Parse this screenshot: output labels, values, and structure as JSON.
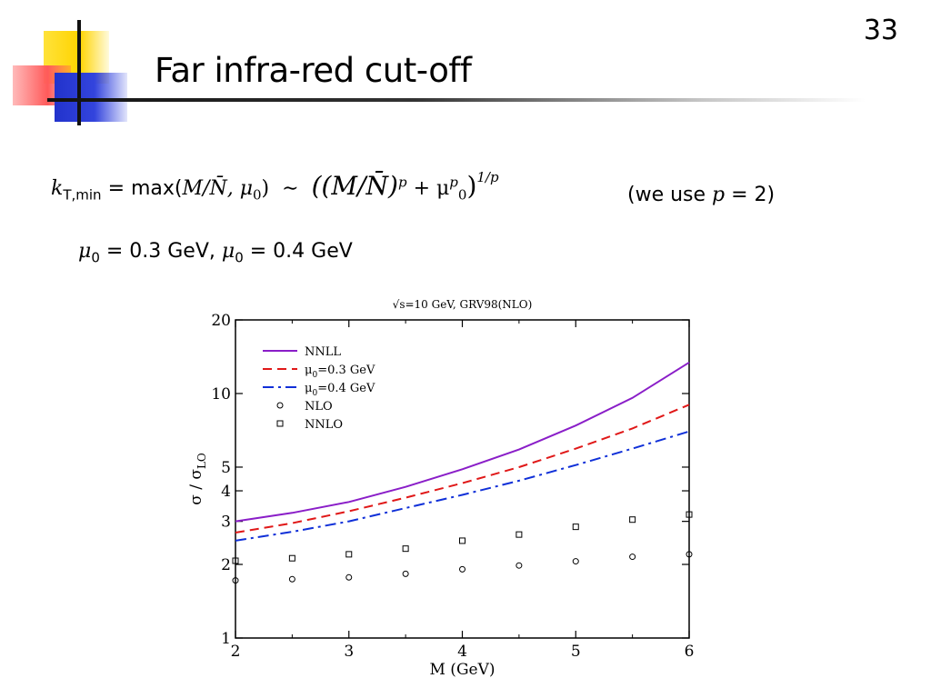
{
  "slide": {
    "title": "Far infra-red cut-off",
    "page_number": "33"
  },
  "formula1": {
    "k": "k",
    "k_sub": "T,min",
    "eq_max": "= max(",
    "args": "M/N̄, μ",
    "args_sub": "0",
    "close": ")",
    "sim": "∼",
    "rhs_open": "((M/N̄)",
    "p": "p",
    "plus": "+ μ",
    "mu_sup": "p",
    "mu_sub": "0",
    "rhs_close": ")",
    "exp": "1/p",
    "note_text": "(we use ",
    "note_var": "p",
    "note_val": " = 2)"
  },
  "formula2": {
    "mu_a": "μ",
    "mu_a_sub": "0",
    "val_a": " = 0.3 GeV, ",
    "mu_b": "μ",
    "mu_b_sub": "0",
    "val_b": " = 0.4 GeV"
  },
  "chart_data": {
    "type": "line",
    "title": "√s=10 GeV, GRV98(NLO)",
    "xlabel": "M (GeV)",
    "ylabel": "σ / σ_LO",
    "ylabel_main": "σ / σ",
    "ylabel_sub": "LO",
    "x_scale": "linear",
    "y_scale": "log",
    "xlim": [
      2,
      6
    ],
    "ylim": [
      1,
      20
    ],
    "x_ticks": [
      2,
      3,
      4,
      5,
      6
    ],
    "x_tick_labels": [
      "2",
      "3",
      "4",
      "5",
      "6"
    ],
    "y_ticks": [
      1,
      2,
      3,
      4,
      5,
      10,
      20
    ],
    "y_tick_labels": [
      "1",
      "2",
      "3",
      "4",
      "5",
      "10",
      "20"
    ],
    "legend_position": "top-left",
    "series": [
      {
        "name": "NNLL",
        "legend_main": "NNLL",
        "legend_sub": "",
        "legend_rest": "",
        "style": "solid",
        "color": "#8a1ec8",
        "x": [
          2,
          2.5,
          3,
          3.5,
          4,
          4.5,
          5,
          5.5,
          6
        ],
        "y": [
          3.0,
          3.25,
          3.6,
          4.15,
          4.9,
          5.9,
          7.4,
          9.6,
          13.4
        ]
      },
      {
        "name": "μ0=0.3 GeV",
        "legend_main": "μ",
        "legend_sub": "0",
        "legend_rest": "=0.3 GeV",
        "style": "dashed",
        "color": "#e01818",
        "x": [
          2,
          2.5,
          3,
          3.5,
          4,
          4.5,
          5,
          5.5,
          6
        ],
        "y": [
          2.7,
          2.95,
          3.3,
          3.75,
          4.3,
          5.0,
          5.95,
          7.2,
          9.0
        ]
      },
      {
        "name": "μ0=0.4 GeV",
        "legend_main": "μ",
        "legend_sub": "0",
        "legend_rest": "=0.4 GeV",
        "style": "dashdot",
        "color": "#1030d8",
        "x": [
          2,
          2.5,
          3,
          3.5,
          4,
          4.5,
          5,
          5.5,
          6
        ],
        "y": [
          2.5,
          2.72,
          3.0,
          3.4,
          3.85,
          4.4,
          5.1,
          5.95,
          7.0
        ]
      },
      {
        "name": "NLO",
        "legend_main": "NLO",
        "legend_sub": "",
        "legend_rest": "",
        "style": "circle",
        "color": "#000000",
        "x": [
          2,
          2.5,
          3,
          3.5,
          4,
          4.5,
          5,
          5.5,
          6
        ],
        "y": [
          1.72,
          1.74,
          1.77,
          1.83,
          1.91,
          1.98,
          2.06,
          2.15,
          2.2
        ]
      },
      {
        "name": "NNLO",
        "legend_main": "NNLO",
        "legend_sub": "",
        "legend_rest": "",
        "style": "square",
        "color": "#000000",
        "x": [
          2,
          2.5,
          3,
          3.5,
          4,
          4.5,
          5,
          5.5,
          6
        ],
        "y": [
          2.07,
          2.12,
          2.2,
          2.32,
          2.5,
          2.65,
          2.85,
          3.05,
          3.2
        ]
      }
    ]
  }
}
